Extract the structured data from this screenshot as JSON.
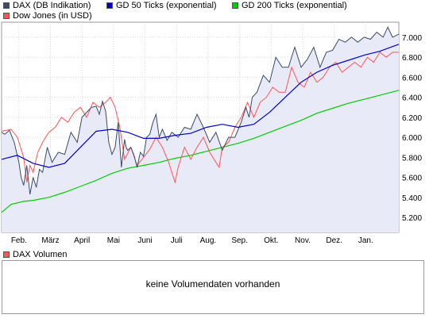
{
  "legend": {
    "dax_label": "DAX (DB Indikation)",
    "gd50_label": "GD 50 Ticks (exponential)",
    "gd200_label": "GD 200 Ticks (exponential)",
    "dow_label": "Dow Jones (in USD)",
    "dax_color": "#3a4a6b",
    "gd50_color": "#0000cc",
    "gd200_color": "#00cc00",
    "dow_color": "#ff5555"
  },
  "volume": {
    "title": "DAX Volumen",
    "color": "#ff5555",
    "message": "keine Volumendaten vorhanden"
  },
  "chart_data": {
    "type": "line",
    "xlabel": "",
    "ylabel": "",
    "x_ticks": [
      "Feb.",
      "März",
      "April",
      "Mai",
      "Juni",
      "Juli",
      "Aug.",
      "Sep.",
      "Okt.",
      "Nov.",
      "Dez.",
      "Jan."
    ],
    "y_ticks": [
      "5.200",
      "5.400",
      "5.600",
      "5.800",
      "6.000",
      "6.200",
      "6.400",
      "6.600",
      "6.800",
      "7.000"
    ],
    "ylim": [
      5050,
      7150
    ],
    "x_range_months": [
      0,
      12.6
    ],
    "grid": true,
    "legend_position": "top-left",
    "series": [
      {
        "name": "DAX (DB Indikation)",
        "color": "#3a4a6b",
        "area_fill": "#e8ebf7",
        "x": [
          0.0,
          0.1,
          0.25,
          0.4,
          0.55,
          0.62,
          0.7,
          0.8,
          0.9,
          1.0,
          1.1,
          1.2,
          1.3,
          1.45,
          1.6,
          1.8,
          2.0,
          2.2,
          2.4,
          2.55,
          2.7,
          2.85,
          3.0,
          3.1,
          3.2,
          3.3,
          3.4,
          3.5,
          3.6,
          3.7,
          3.8,
          3.9,
          3.95,
          4.0,
          4.1,
          4.2,
          4.3,
          4.4,
          4.5,
          4.6,
          4.7,
          4.8,
          4.9,
          5.0,
          5.1,
          5.25,
          5.4,
          5.6,
          5.8,
          6.0,
          6.2,
          6.4,
          6.6,
          6.8,
          7.0,
          7.2,
          7.4,
          7.6,
          7.75,
          7.85,
          7.95,
          8.1,
          8.3,
          8.5,
          8.7,
          8.9,
          9.1,
          9.3,
          9.5,
          9.7,
          9.9,
          10.1,
          10.3,
          10.5,
          10.7,
          10.9,
          11.1,
          11.3,
          11.5,
          11.7,
          11.9,
          12.1,
          12.25,
          12.4,
          12.6
        ],
        "y": [
          6050,
          6030,
          6070,
          5950,
          5750,
          5600,
          5520,
          5720,
          5430,
          5600,
          5500,
          5680,
          5650,
          5900,
          5750,
          5850,
          5830,
          6050,
          5950,
          6200,
          6250,
          6300,
          6310,
          6230,
          6360,
          6260,
          5950,
          5830,
          5900,
          6150,
          5700,
          5980,
          5900,
          5870,
          5900,
          5820,
          5700,
          5850,
          5810,
          6000,
          6030,
          6150,
          6230,
          6000,
          6080,
          5970,
          6050,
          6000,
          6100,
          6080,
          6230,
          6100,
          5950,
          6050,
          5870,
          6000,
          6000,
          6150,
          6300,
          6200,
          6400,
          6450,
          6620,
          6550,
          6800,
          6700,
          6700,
          6900,
          6700,
          6780,
          6900,
          6700,
          6850,
          6870,
          6980,
          6950,
          7000,
          6950,
          7000,
          6980,
          7050,
          7000,
          7100,
          7000,
          7030
        ]
      },
      {
        "name": "GD 50 Ticks (exponential)",
        "color": "#0000cc",
        "x": [
          0.0,
          0.5,
          1.0,
          1.5,
          2.0,
          2.5,
          3.0,
          3.5,
          4.0,
          4.5,
          5.0,
          5.5,
          6.0,
          6.5,
          7.0,
          7.5,
          8.0,
          8.5,
          9.0,
          9.5,
          10.0,
          10.5,
          11.0,
          11.5,
          12.0,
          12.6
        ],
        "y": [
          5780,
          5820,
          5740,
          5700,
          5740,
          5900,
          6060,
          6080,
          6050,
          5990,
          5990,
          6020,
          6040,
          6100,
          6130,
          6100,
          6130,
          6250,
          6400,
          6550,
          6650,
          6720,
          6770,
          6820,
          6860,
          6930
        ]
      },
      {
        "name": "GD 200 Ticks (exponential)",
        "color": "#00cc00",
        "x": [
          0.0,
          0.3,
          0.7,
          1.0,
          1.5,
          2.0,
          2.5,
          3.0,
          3.5,
          4.0,
          4.5,
          5.0,
          5.5,
          6.0,
          6.5,
          7.0,
          7.5,
          8.0,
          8.5,
          9.0,
          9.5,
          10.0,
          10.5,
          11.0,
          11.5,
          12.0,
          12.6
        ],
        "y": [
          5250,
          5330,
          5360,
          5370,
          5400,
          5450,
          5510,
          5570,
          5640,
          5690,
          5720,
          5750,
          5790,
          5820,
          5860,
          5900,
          5940,
          5990,
          6050,
          6110,
          6170,
          6240,
          6290,
          6340,
          6380,
          6420,
          6470
        ]
      },
      {
        "name": "Dow Jones (in USD)",
        "color": "#ff5555",
        "x": [
          0.0,
          0.3,
          0.5,
          0.7,
          0.8,
          0.9,
          1.0,
          1.15,
          1.3,
          1.5,
          1.7,
          1.9,
          2.1,
          2.3,
          2.5,
          2.7,
          2.9,
          3.1,
          3.3,
          3.45,
          3.6,
          3.75,
          3.9,
          4.1,
          4.3,
          4.5,
          4.7,
          4.9,
          5.1,
          5.3,
          5.5,
          5.6,
          5.8,
          6.0,
          6.2,
          6.4,
          6.6,
          6.8,
          6.9,
          7.0,
          7.2,
          7.4,
          7.6,
          7.8,
          8.0,
          8.2,
          8.4,
          8.6,
          8.8,
          9.0,
          9.2,
          9.4,
          9.6,
          9.8,
          10.0,
          10.2,
          10.4,
          10.6,
          10.8,
          11.0,
          11.2,
          11.4,
          11.6,
          11.8,
          12.0,
          12.2,
          12.4,
          12.6
        ],
        "y": [
          6060,
          6080,
          6000,
          5800,
          5550,
          5720,
          5650,
          5850,
          5950,
          6050,
          6100,
          6200,
          6150,
          6250,
          6300,
          6200,
          6350,
          6300,
          6350,
          6400,
          6300,
          6100,
          5780,
          5900,
          5720,
          5800,
          5880,
          6000,
          5900,
          5750,
          5550,
          5700,
          5900,
          5780,
          5900,
          6000,
          5850,
          5750,
          5700,
          5900,
          5950,
          6100,
          6200,
          6350,
          6200,
          6350,
          6400,
          6500,
          6450,
          6450,
          6700,
          6550,
          6500,
          6650,
          6550,
          6600,
          6700,
          6750,
          6650,
          6700,
          6750,
          6700,
          6800,
          6750,
          6850,
          6800,
          6850,
          6850
        ]
      }
    ]
  }
}
